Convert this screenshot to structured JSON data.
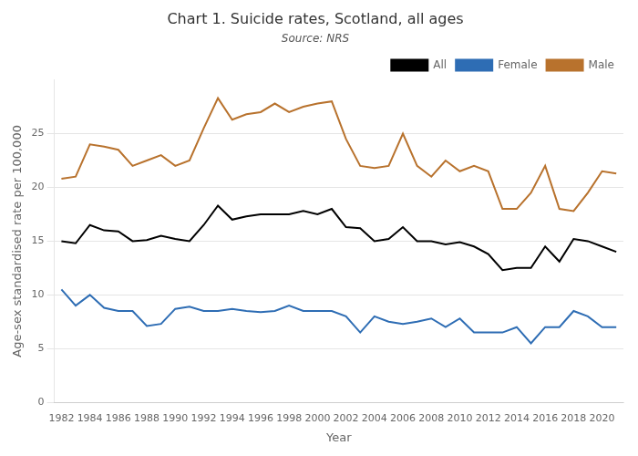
{
  "chart_data": {
    "type": "line",
    "title": "Chart 1. Suicide rates, Scotland, all ages",
    "subtitle": "Source: NRS",
    "xlabel": "Year",
    "ylabel": "Age-sex standardised rate per 100,000",
    "x": [
      1982,
      1983,
      1984,
      1985,
      1986,
      1987,
      1988,
      1989,
      1990,
      1991,
      1992,
      1993,
      1994,
      1995,
      1996,
      1997,
      1998,
      1999,
      2000,
      2001,
      2002,
      2003,
      2004,
      2005,
      2006,
      2007,
      2008,
      2009,
      2010,
      2011,
      2012,
      2013,
      2014,
      2015,
      2016,
      2017,
      2018,
      2019,
      2020,
      2021
    ],
    "series": [
      {
        "name": "All",
        "color": "#000000",
        "values": [
          15.0,
          14.8,
          16.5,
          16.0,
          15.9,
          15.0,
          15.1,
          15.5,
          15.2,
          15.0,
          16.5,
          18.3,
          17.0,
          17.3,
          17.5,
          17.5,
          17.5,
          17.8,
          17.5,
          18.0,
          16.3,
          16.2,
          15.0,
          15.2,
          16.3,
          15.0,
          15.0,
          14.7,
          14.9,
          14.5,
          13.8,
          12.3,
          12.5,
          12.5,
          14.5,
          13.1,
          15.2,
          15.0,
          14.5,
          14.0
        ]
      },
      {
        "name": "Female",
        "color": "#2e6db4",
        "values": [
          10.5,
          9.0,
          10.0,
          8.8,
          8.5,
          8.5,
          7.1,
          7.3,
          8.7,
          8.9,
          8.5,
          8.5,
          8.7,
          8.5,
          8.4,
          8.5,
          9.0,
          8.5,
          8.5,
          8.5,
          8.0,
          6.5,
          8.0,
          7.5,
          7.3,
          7.5,
          7.8,
          7.0,
          7.8,
          6.5,
          6.5,
          6.5,
          7.0,
          5.5,
          7.0,
          7.0,
          8.5,
          8.0,
          7.0,
          7.0
        ]
      },
      {
        "name": "Male",
        "color": "#b8722d",
        "values": [
          20.8,
          21.0,
          24.0,
          23.8,
          23.5,
          22.0,
          22.5,
          23.0,
          22.0,
          22.5,
          25.5,
          28.3,
          26.3,
          26.8,
          27.0,
          27.8,
          27.0,
          27.5,
          27.8,
          28.0,
          24.5,
          22.0,
          21.8,
          22.0,
          25.0,
          22.0,
          21.0,
          22.5,
          21.5,
          22.0,
          21.5,
          18.0,
          18.0,
          19.5,
          22.0,
          18.0,
          17.8,
          19.5,
          21.5,
          21.3
        ]
      }
    ],
    "xlim": [
      1981.5,
      2021.5
    ],
    "xticks": [
      1982,
      1984,
      1986,
      1988,
      1990,
      1992,
      1994,
      1996,
      1998,
      2000,
      2002,
      2004,
      2006,
      2008,
      2010,
      2012,
      2014,
      2016,
      2018,
      2020
    ],
    "ylim": [
      0,
      30
    ],
    "yticks": [
      0,
      5,
      10,
      15,
      20,
      25
    ],
    "grid": "y",
    "legend": "upper right"
  }
}
